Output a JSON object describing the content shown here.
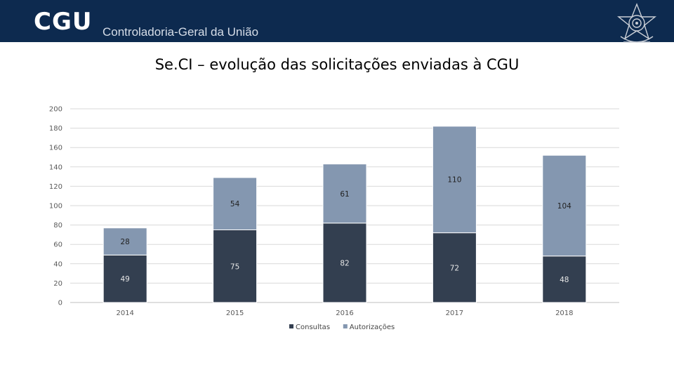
{
  "header": {
    "logo_text": "CGU",
    "org_name": "Controladoria-Geral da União"
  },
  "colors": {
    "header_bg": "#0d2a4f",
    "consultas": "#333f50",
    "autorizacoes": "#8497b0",
    "grid": "#d9d9d9"
  },
  "chart_data": {
    "type": "bar",
    "stacked": true,
    "title": "Se.CI – evolução das solicitações enviadas à CGU",
    "categories": [
      "2014",
      "2015",
      "2016",
      "2017",
      "2018"
    ],
    "series": [
      {
        "name": "Consultas",
        "values": [
          49,
          75,
          82,
          72,
          48
        ]
      },
      {
        "name": "Autorizações",
        "values": [
          28,
          54,
          61,
          110,
          104
        ]
      }
    ],
    "ylim": [
      0,
      200
    ],
    "yticks": [
      0,
      20,
      40,
      60,
      80,
      100,
      120,
      140,
      160,
      180,
      200
    ],
    "grid": true,
    "legend": "bottom-center",
    "xlabel": "",
    "ylabel": ""
  }
}
